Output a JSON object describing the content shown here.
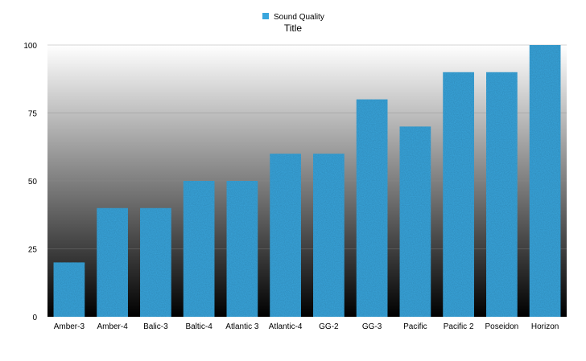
{
  "chart_data": {
    "type": "bar",
    "title": "Title",
    "xlabel": "",
    "ylabel": "",
    "categories": [
      "Amber-3",
      "Amber-4",
      "Balic-3",
      "Baltic-4",
      "Atlantic 3",
      "Atlantic-4",
      "GG-2",
      "GG-3",
      "Pacific",
      "Pacific 2",
      "Poseidon",
      "Horizon"
    ],
    "series": [
      {
        "name": "Sound Quality",
        "values": [
          20,
          40,
          40,
          50,
          50,
          60,
          60,
          80,
          70,
          90,
          90,
          100
        ],
        "color": "#3aa6dd"
      }
    ],
    "ylim": [
      0,
      100
    ],
    "yticks": [
      0,
      25,
      50,
      75,
      100
    ],
    "grid": true,
    "legend": "top-center",
    "background_gradient": [
      "#ffffff",
      "#000000"
    ]
  }
}
